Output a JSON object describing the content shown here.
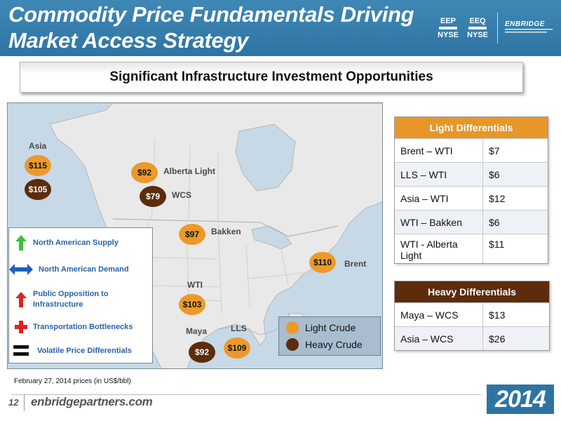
{
  "header": {
    "title_line1": "Commodity Price Fundamentals Driving",
    "title_line2": "Market Access Strategy",
    "tickers": [
      {
        "symbol": "EEP",
        "exchange": "NYSE"
      },
      {
        "symbol": "EEQ",
        "exchange": "NYSE"
      }
    ],
    "brand": "ENBRIDGE",
    "colors": {
      "header_blue": "#2e74a3",
      "light_orange": "#eb9a2a",
      "heavy_brown": "#5c2c0c",
      "legend_text_blue": "#2a62a8"
    }
  },
  "subtitle": "Significant Infrastructure Investment Opportunities",
  "map": {
    "labels": {
      "asia": "Asia",
      "alberta_light": "Alberta Light",
      "wcs": "WCS",
      "bakken": "Bakken",
      "brent": "Brent",
      "wti": "WTI",
      "maya": "Maya",
      "lls": "LLS"
    },
    "prices": {
      "asia_light": "$115",
      "asia_heavy": "$105",
      "alberta_light": "$92",
      "wcs": "$79",
      "bakken": "$97",
      "brent": "$110",
      "wti": "$103",
      "maya": "$92",
      "lls": "$109"
    },
    "legend_items": [
      {
        "icon": "green-up-arrow-icon",
        "label": "North American Supply"
      },
      {
        "icon": "blue-double-arrow-icon",
        "label": "North American Demand"
      },
      {
        "icon": "red-up-arrow-icon",
        "label": "Public Opposition to Infrastructure"
      },
      {
        "icon": "red-plus-icon",
        "label": "Transportation Bottlenecks"
      },
      {
        "icon": "black-equals-icon",
        "label": "Volatile Price Differentials"
      }
    ],
    "crude_legend": {
      "light": "Light Crude",
      "heavy": "Heavy Crude"
    }
  },
  "light_table": {
    "header": "Light Differentials",
    "rows": [
      {
        "pair": "Brent – WTI",
        "value": "$7"
      },
      {
        "pair": "LLS – WTI",
        "value": "$6"
      },
      {
        "pair": "Asia – WTI",
        "value": "$12"
      },
      {
        "pair": "WTI – Bakken",
        "value": "$6"
      },
      {
        "pair": "WTI - Alberta Light",
        "value": "$11"
      }
    ]
  },
  "heavy_table": {
    "header": "Heavy Differentials",
    "rows": [
      {
        "pair": "Maya – WCS",
        "value": "$13"
      },
      {
        "pair": "Asia – WCS",
        "value": "$26"
      }
    ]
  },
  "footer": {
    "note": "February 27, 2014 prices (in US$/bbl)",
    "page": "12",
    "site": "enbridgepartners.com",
    "year": "2014"
  }
}
